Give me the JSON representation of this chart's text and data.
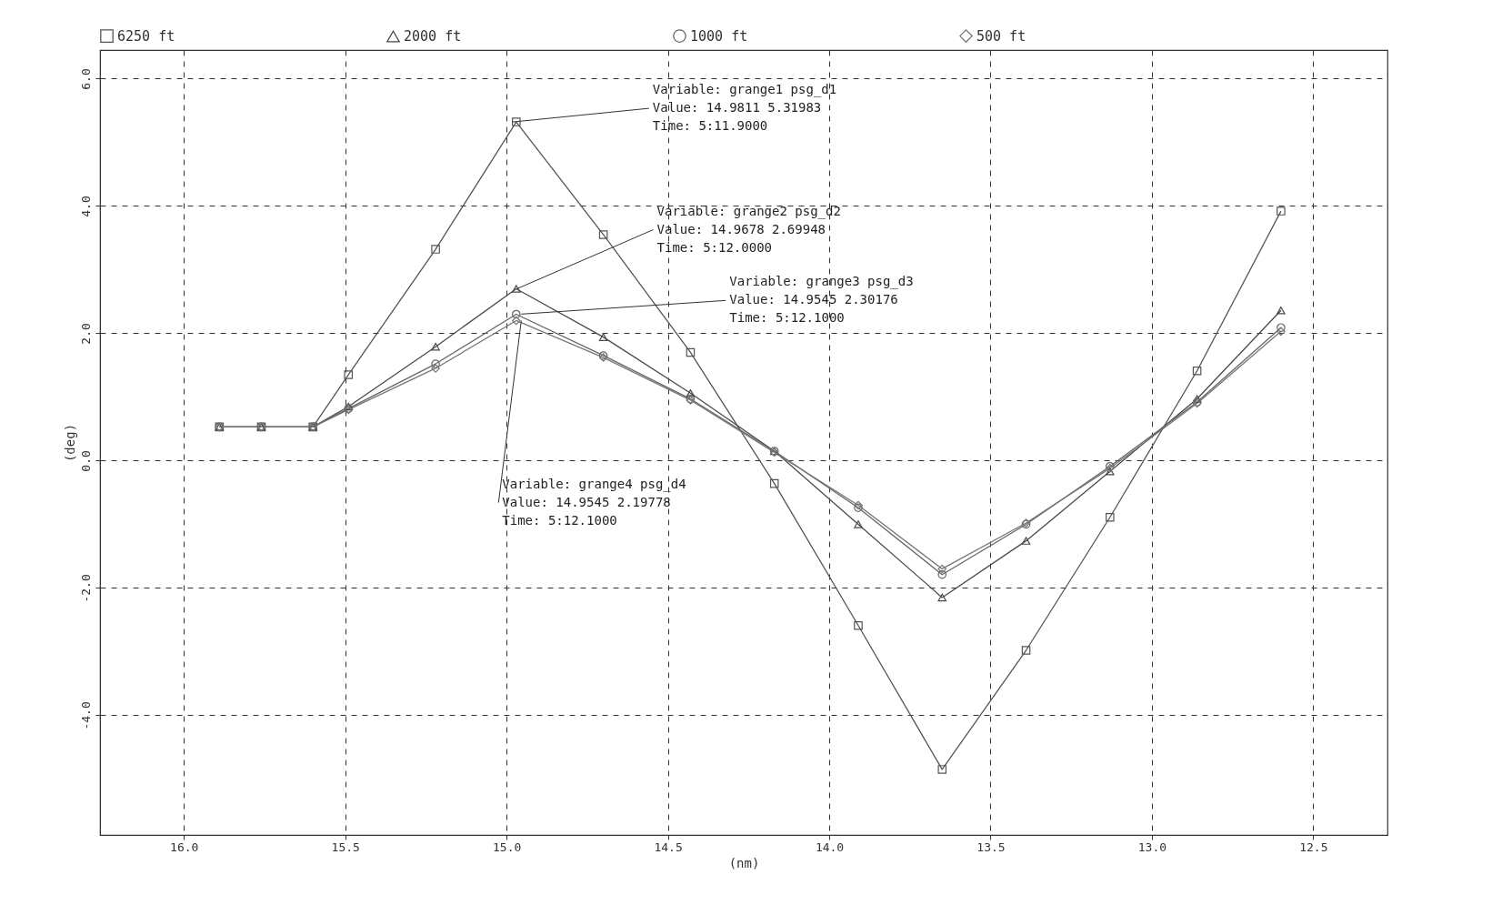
{
  "chart_data": {
    "type": "line",
    "xlabel": "(nm)",
    "ylabel": "(deg)",
    "x": [
      15.89,
      15.76,
      15.6,
      15.49,
      15.22,
      14.97,
      14.7,
      14.43,
      14.17,
      13.91,
      13.65,
      13.39,
      13.13,
      12.86,
      12.6
    ],
    "series": [
      {
        "name": "6250 ft",
        "color": "#555555",
        "marker": "square",
        "values": [
          0.53,
          0.53,
          0.53,
          1.35,
          3.32,
          5.32,
          3.55,
          1.7,
          -0.36,
          -2.59,
          -4.85,
          -2.98,
          -0.89,
          1.41,
          3.92
        ]
      },
      {
        "name": "2000 ft",
        "color": "#4a4a4a",
        "marker": "triangle",
        "values": [
          0.53,
          0.53,
          0.53,
          0.85,
          1.79,
          2.7,
          1.94,
          1.06,
          0.15,
          -1.0,
          -2.15,
          -1.26,
          -0.17,
          0.97,
          2.36
        ]
      },
      {
        "name": "1000 ft",
        "color": "#666666",
        "marker": "circle",
        "values": [
          0.53,
          0.53,
          0.53,
          0.82,
          1.52,
          2.3,
          1.65,
          0.97,
          0.15,
          -0.74,
          -1.79,
          -1.0,
          -0.09,
          0.92,
          2.09
        ]
      },
      {
        "name": "500 ft",
        "color": "#777777",
        "marker": "diamond",
        "values": [
          0.53,
          0.53,
          0.53,
          0.8,
          1.45,
          2.2,
          1.62,
          0.95,
          0.13,
          -0.7,
          -1.7,
          -0.98,
          -0.12,
          0.9,
          2.03
        ]
      }
    ],
    "xlim": [
      16.26,
      12.27
    ],
    "ylim": [
      -5.88,
      6.45
    ],
    "xticks": [
      {
        "value": 16,
        "label": "16.0"
      },
      15.5,
      {
        "value": 15,
        "label": "15.0"
      },
      14.5,
      {
        "value": 14,
        "label": "14.0"
      },
      13.5,
      {
        "value": 13,
        "label": "13.0"
      },
      12.5
    ],
    "yticks": [
      {
        "value": -4,
        "label": "-4.0"
      },
      {
        "value": -2,
        "label": "-2.0"
      },
      {
        "value": 0,
        "label": "0.0"
      },
      {
        "value": 2,
        "label": "2.0"
      },
      {
        "value": 4,
        "label": "4.0"
      },
      {
        "value": 6,
        "label": "6.0"
      }
    ],
    "grid": true,
    "legend": "top",
    "line_style": "solid",
    "annotations": [
      {
        "text": "Variable: grange1 psg_d1\nValue: 14.9811 5.31983\nTime: 5:11.9000",
        "x": 14.9811,
        "y": 5.31983
      },
      {
        "text": "Variable: grange2 psg_d2\nValue: 14.9678 2.69948\nTime: 5:12.0000",
        "x": 14.9678,
        "y": 2.69948
      },
      {
        "text": "Variable: grange3 psg_d3\nValue: 14.9545 2.30176\nTime: 5:12.1000",
        "x": 14.9545,
        "y": 2.30176
      },
      {
        "text": "Variable: grange4 psg_d4\nValue: 14.9545 2.19778\nTime: 5:12.1000",
        "x": 14.9545,
        "y": 2.19778
      }
    ]
  }
}
